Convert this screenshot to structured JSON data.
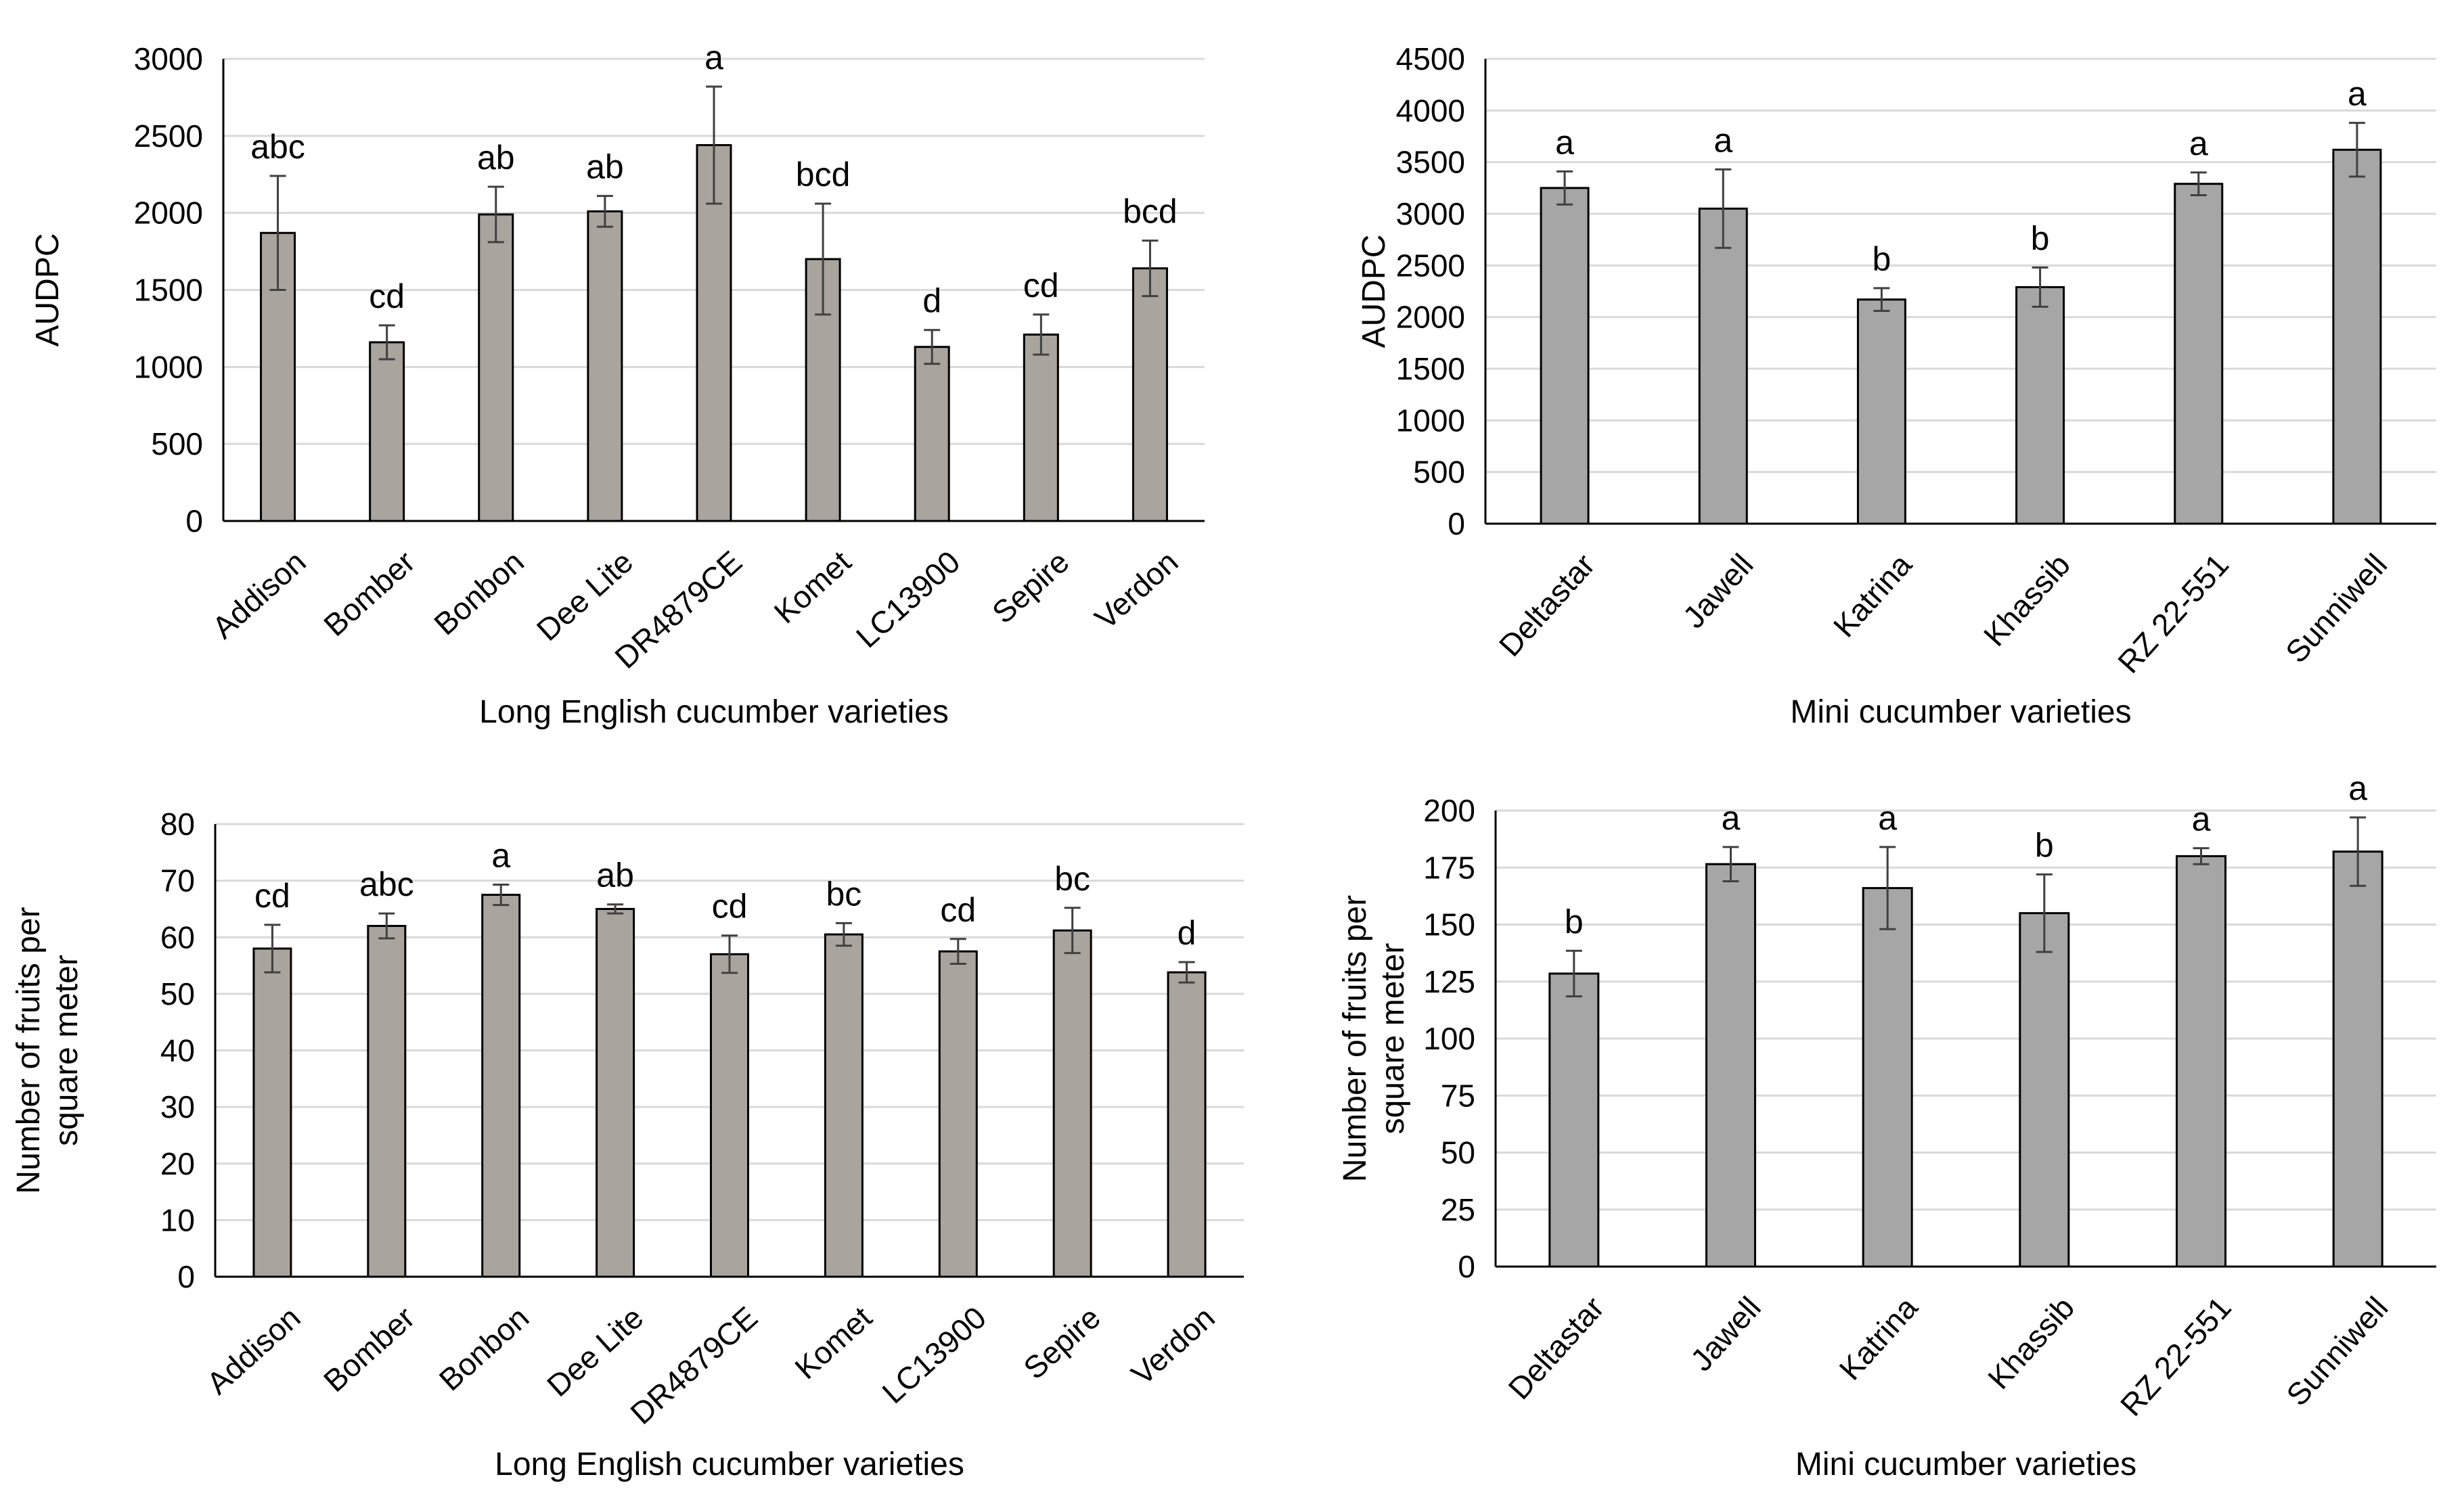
{
  "colors": {
    "bar_long": "#aaa49f",
    "bar_mini": "#a6a6a6",
    "bar_edge": "#000000",
    "grid": "#d9d9d9",
    "axis": "#000000",
    "error_bar": "#404040",
    "tick_text": "#595959",
    "text": "#000000"
  },
  "chart_data": [
    {
      "type": "bar",
      "panel": "top-left",
      "title": "",
      "xlabel": "Long English cucumber varieties",
      "ylabel": [
        "AUDPC"
      ],
      "ylim": [
        0,
        3000
      ],
      "yticks": [
        0,
        500,
        1000,
        1500,
        2000,
        2500,
        3000
      ],
      "grid": true,
      "categories": [
        "Addison",
        "Bomber",
        "Bonbon",
        "Dee Lite",
        "DR4879CE",
        "Komet",
        "LC13900",
        "Sepire",
        "Verdon"
      ],
      "values": [
        1870,
        1160,
        1990,
        2010,
        2440,
        1700,
        1130,
        1210,
        1640
      ],
      "errors": [
        370,
        110,
        180,
        100,
        380,
        360,
        110,
        130,
        180
      ],
      "letters": [
        "abc",
        "cd",
        "ab",
        "ab",
        "a",
        "bcd",
        "d",
        "cd",
        "bcd"
      ],
      "bar_color_key": "bar_long"
    },
    {
      "type": "bar",
      "panel": "top-right",
      "title": "",
      "xlabel": "Mini cucumber varieties",
      "ylabel": [
        "AUDPC"
      ],
      "ylim": [
        0,
        4500
      ],
      "yticks": [
        0,
        500,
        1000,
        1500,
        2000,
        2500,
        3000,
        3500,
        4000,
        4500
      ],
      "grid": true,
      "categories": [
        "Deltastar",
        "Jawell",
        "Katrina",
        "Khassib",
        "RZ 22-551",
        "Sunniwell"
      ],
      "values": [
        3250,
        3050,
        2170,
        2290,
        3290,
        3620
      ],
      "errors": [
        160,
        380,
        110,
        190,
        110,
        260
      ],
      "letters": [
        "a",
        "a",
        "b",
        "b",
        "a",
        "a"
      ],
      "bar_color_key": "bar_mini"
    },
    {
      "type": "bar",
      "panel": "bottom-left",
      "title": "",
      "xlabel": "Long English cucumber varieties",
      "ylabel": [
        "Number of fruits per",
        "square meter"
      ],
      "ylim": [
        0,
        80
      ],
      "yticks": [
        0,
        10,
        20,
        30,
        40,
        50,
        60,
        70,
        80
      ],
      "grid": true,
      "categories": [
        "Addison",
        "Bomber",
        "Bonbon",
        "Dee Lite",
        "DR4879CE",
        "Komet",
        "LC13900",
        "Sepire",
        "Verdon"
      ],
      "values": [
        58.0,
        62.0,
        67.5,
        65.0,
        57.0,
        60.5,
        57.5,
        61.2,
        53.8
      ],
      "errors": [
        4.2,
        2.2,
        1.8,
        0.8,
        3.3,
        2.0,
        2.2,
        4.0,
        1.8
      ],
      "letters": [
        "cd",
        "abc",
        "a",
        "ab",
        "cd",
        "bc",
        "cd",
        "bc",
        "d"
      ],
      "bar_color_key": "bar_long"
    },
    {
      "type": "bar",
      "panel": "bottom-right",
      "title": "",
      "xlabel": "Mini cucumber varieties",
      "ylabel": [
        "Number of fruits per",
        "square meter"
      ],
      "ylim": [
        0,
        200
      ],
      "yticks": [
        0,
        25,
        50,
        75,
        100,
        125,
        150,
        175,
        200
      ],
      "grid": true,
      "categories": [
        "Deltastar",
        "Jawell",
        "Katrina",
        "Khassib",
        "RZ 22-551",
        "Sunniwell"
      ],
      "values": [
        128.5,
        176.5,
        166.0,
        155.0,
        180.0,
        182.0
      ],
      "errors": [
        10.0,
        7.5,
        18.0,
        17.0,
        3.5,
        15.0
      ],
      "letters": [
        "b",
        "a",
        "a",
        "b",
        "a",
        "a"
      ],
      "bar_color_key": "bar_mini"
    }
  ]
}
